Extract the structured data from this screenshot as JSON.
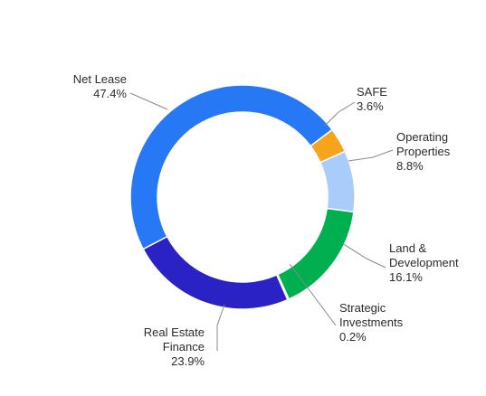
{
  "chart_data": {
    "type": "pie",
    "donut": true,
    "title": "",
    "legend": "none",
    "slices": [
      {
        "name": "SAFE",
        "value": 3.6,
        "label_lines": [
          "SAFE",
          "3.6%"
        ],
        "color": "#f5a41c"
      },
      {
        "name": "Operating Properties",
        "value": 8.8,
        "label_lines": [
          "Operating",
          "Properties",
          "8.8%"
        ],
        "color": "#a9ccfb"
      },
      {
        "name": "Land & Development",
        "value": 16.1,
        "label_lines": [
          "Land &",
          "Development",
          "16.1%"
        ],
        "color": "#00b050"
      },
      {
        "name": "Strategic Investments",
        "value": 0.2,
        "label_lines": [
          "Strategic",
          "Investments",
          "0.2%"
        ],
        "color": "#3a8f5c"
      },
      {
        "name": "Real Estate Finance",
        "value": 23.9,
        "label_lines": [
          "Real Estate",
          "Finance",
          "23.9%"
        ],
        "color": "#2a22c4"
      },
      {
        "name": "Net Lease",
        "value": 47.4,
        "label_lines": [
          "Net Lease",
          "47.4%"
        ],
        "color": "#2678f5"
      }
    ]
  }
}
